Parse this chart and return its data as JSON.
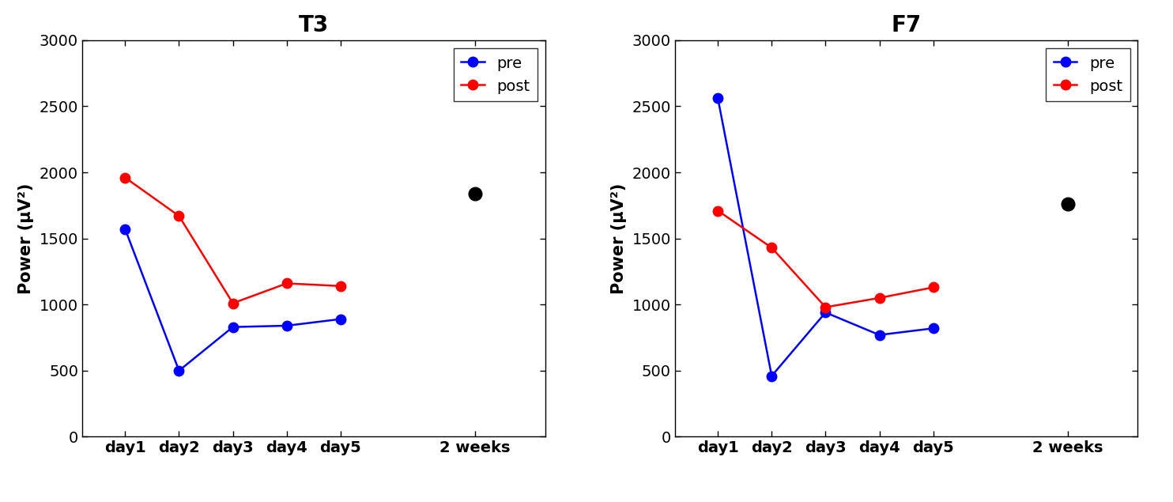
{
  "T3": {
    "title": "T3",
    "pre_values": [
      1570,
      500,
      830,
      840,
      890
    ],
    "post_values": [
      1960,
      1670,
      1010,
      1160,
      1140
    ],
    "black_dot_2weeks": 1840
  },
  "F7": {
    "title": "F7",
    "pre_values": [
      2560,
      460,
      940,
      770,
      820
    ],
    "post_values": [
      1710,
      1430,
      980,
      1050,
      1130
    ],
    "black_dot_2weeks": 1760
  },
  "x_days": [
    1,
    2,
    3,
    4,
    5
  ],
  "x_weeks": 7.5,
  "x_labels": [
    "day1",
    "day2",
    "day3",
    "day4",
    "day5",
    "2 weeks"
  ],
  "x_ticks": [
    1,
    2,
    3,
    4,
    5,
    7.5
  ],
  "xlim": [
    0.2,
    8.8
  ],
  "ylim": [
    0,
    3000
  ],
  "yticks": [
    0,
    500,
    1000,
    1500,
    2000,
    2500,
    3000
  ],
  "ylabel": "Power (μV²)",
  "pre_color": "#0000ff",
  "post_color": "#ff0000",
  "black_color": "#000000",
  "marker": "o",
  "markersize": 9,
  "linewidth": 1.8,
  "background_color": "#ffffff",
  "title_fontsize": 20,
  "label_fontsize": 15,
  "tick_fontsize": 14,
  "legend_fontsize": 14
}
